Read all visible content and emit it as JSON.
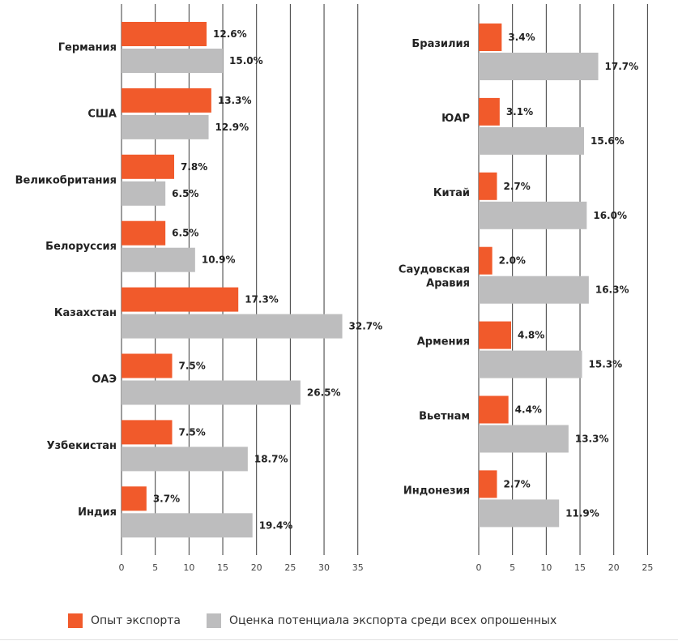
{
  "colors": {
    "experience": "#f15a2b",
    "potential": "#bdbdbe",
    "grid": "#3a3a3a",
    "text": "#222222"
  },
  "legend": {
    "experience_label": "Опыт экспорта",
    "potential_label": "Оценка потенциала экспорта среди всех опрошенных"
  },
  "chart_data": [
    {
      "type": "bar",
      "orientation": "horizontal",
      "categories": [
        "Германия",
        "США",
        "Великобритания",
        "Белоруссия",
        "Казахстан",
        "ОАЭ",
        "Узбекистан",
        "Индия"
      ],
      "series": [
        {
          "name": "Опыт экспорта",
          "color": "#f15a2b",
          "values": [
            12.6,
            13.3,
            7.8,
            6.5,
            17.3,
            7.5,
            7.5,
            3.7
          ],
          "labels": [
            "12.6%",
            "13.3%",
            "7.8%",
            "6.5%",
            "17.3%",
            "7.5%",
            "7.5%",
            "3.7%"
          ]
        },
        {
          "name": "Оценка потенциала экспорта среди всех опрошенных",
          "color": "#bdbdbe",
          "values": [
            15.0,
            12.9,
            6.5,
            10.9,
            32.7,
            26.5,
            18.7,
            19.4
          ],
          "labels": [
            "15.0%",
            "12.9%",
            "6.5%",
            "10.9%",
            "32.7%",
            "26.5%",
            "18.7%",
            "19.4%"
          ]
        }
      ],
      "xlim": [
        0,
        35
      ],
      "ticks": [
        "0",
        "5",
        "10",
        "15",
        "20",
        "25",
        "30",
        "35"
      ],
      "grid": true
    },
    {
      "type": "bar",
      "orientation": "horizontal",
      "categories": [
        "Бразилия",
        "ЮАР",
        "Китай",
        "Саудовская Аравия",
        "Армения",
        "Вьетнам",
        "Индонезия"
      ],
      "series": [
        {
          "name": "Опыт экспорта",
          "color": "#f15a2b",
          "values": [
            3.4,
            3.1,
            2.7,
            2.0,
            4.8,
            4.4,
            2.7
          ],
          "labels": [
            "3.4%",
            "3.1%",
            "2.7%",
            "2.0%",
            "4.8%",
            "4.4%",
            "2.7%"
          ]
        },
        {
          "name": "Оценка потенциала экспорта среди всех опрошенных",
          "color": "#bdbdbe",
          "values": [
            17.7,
            15.6,
            16.0,
            16.3,
            15.3,
            13.3,
            11.9
          ],
          "labels": [
            "17.7%",
            "15.6%",
            "16.0%",
            "16.3%",
            "15.3%",
            "13.3%",
            "11.9%"
          ]
        }
      ],
      "xlim": [
        0,
        25
      ],
      "ticks": [
        "0",
        "5",
        "10",
        "15",
        "20",
        "25"
      ],
      "grid": true
    }
  ]
}
